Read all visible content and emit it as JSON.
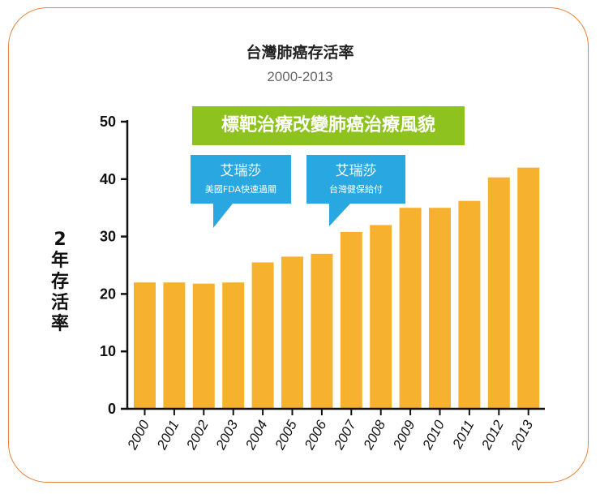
{
  "chart_data": {
    "type": "bar",
    "title": "台灣肺癌存活率",
    "subtitle": "2000-2013",
    "ylabel": "2年存活率",
    "xlabel": "",
    "categories": [
      "2000",
      "2001",
      "2002",
      "2003",
      "2004",
      "2005",
      "2006",
      "2007",
      "2008",
      "2009",
      "2010",
      "2011",
      "2012",
      "2013"
    ],
    "values": [
      22,
      22,
      21.8,
      22,
      25.5,
      26.5,
      27,
      30.8,
      32,
      35,
      35,
      36.2,
      40.3,
      42
    ],
    "ylim": [
      0,
      50
    ],
    "yticks": [
      "0",
      "10",
      "20",
      "30",
      "40",
      "50"
    ],
    "grid": false,
    "bar_color": "#f6b12e",
    "banner": "標靶治療改變肺癌治療風貌",
    "banner_color": "#8dc21f",
    "callouts": [
      {
        "title": "艾瑞莎",
        "subtitle": "美國FDA快速過關"
      },
      {
        "title": "艾瑞莎",
        "subtitle": "台灣健保給付"
      }
    ],
    "callout_color": "#29a7e1",
    "frame_color": "#e8823a"
  }
}
